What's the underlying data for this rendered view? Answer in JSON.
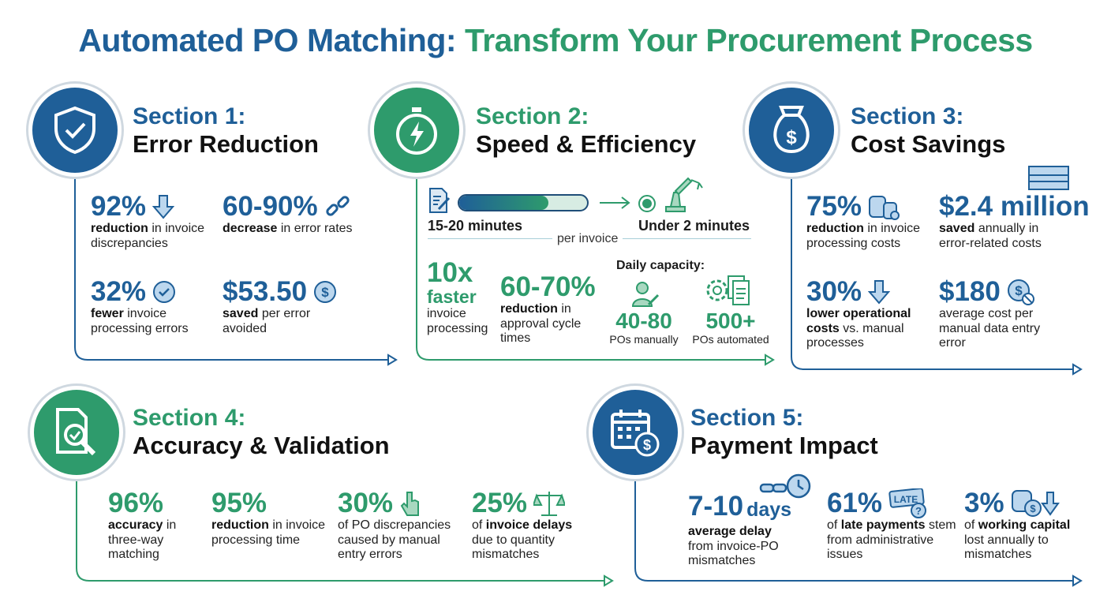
{
  "title": {
    "part1": "Automated PO Matching:",
    "part2": "Transform Your Procurement Process"
  },
  "colors": {
    "blue": "#1f5f98",
    "green": "#2e9b6c"
  },
  "sections": [
    {
      "number": "Section 1:",
      "name": "Error Reduction",
      "icon": "shield-check-icon",
      "stats": [
        {
          "value": "92%",
          "icon": "arrow-down-icon",
          "pre": "",
          "bold": "reduction",
          "post": " in invoice discrepancies"
        },
        {
          "value": "60-90%",
          "icon": "broken-link-icon",
          "pre": "",
          "bold": "decrease",
          "post": " in error rates"
        },
        {
          "value": "32%",
          "icon": "check-circle-icon",
          "pre": "",
          "bold": "fewer",
          "post": " invoice processing errors"
        },
        {
          "value": "$53.50",
          "icon": "dollar-coin-icon",
          "pre": "",
          "bold": "saved",
          "post": " per error avoided"
        }
      ]
    },
    {
      "number": "Section 2:",
      "name": "Speed & Efficiency",
      "icon": "stopwatch-lightning-icon",
      "before": "15-20 minutes",
      "after": "Under 2 minutes",
      "per": "per invoice",
      "progress_fill": 0.7,
      "stats": [
        {
          "value": "10x",
          "sub": "faster",
          "post": "invoice processing"
        },
        {
          "value": "60-70%",
          "bold": "reduction",
          "post": " in approval cycle times"
        }
      ],
      "capacity": {
        "label": "Daily capacity:",
        "manual_value": "40-80",
        "manual_label": "POs manually",
        "auto_value": "500+",
        "auto_label": "POs automated"
      }
    },
    {
      "number": "Section 3:",
      "name": "Cost Savings",
      "icon": "money-bag-icon",
      "stats": [
        {
          "value": "75%",
          "icon": "coins-icon",
          "pre": "",
          "bold": "reduction",
          "post": " in invoice processing costs"
        },
        {
          "value": "$2.4 million",
          "icon": "cash-stack-icon",
          "pre": "",
          "bold": "saved",
          "post": " annually in error-related costs"
        },
        {
          "value": "30%",
          "icon": "arrow-down-icon",
          "pre": "",
          "bold": "lower operational costs",
          "post": " vs. manual processes"
        },
        {
          "value": "$180",
          "icon": "dollar-block-icon",
          "pre": "",
          "bold": "",
          "post": "average cost per manual data entry error"
        }
      ]
    },
    {
      "number": "Section 4:",
      "name": "Accuracy & Validation",
      "icon": "document-search-icon",
      "stats": [
        {
          "value": "96%",
          "pre": "",
          "bold": "accuracy",
          "post": " in three-way matching"
        },
        {
          "value": "95%",
          "pre": "",
          "bold": "reduction",
          "post": " in invoice processing time"
        },
        {
          "value": "30%",
          "icon": "hand-pointer-icon",
          "pre": "of PO discrepancies caused by manual entry errors",
          "bold": "",
          "post": ""
        },
        {
          "value": "25%",
          "icon": "scales-icon",
          "pre": "of ",
          "bold": "invoice delays",
          "post": " due to quantity mismatches"
        }
      ]
    },
    {
      "number": "Section 5:",
      "name": "Payment Impact",
      "icon": "calendar-dollar-icon",
      "stats": [
        {
          "value": "7-10",
          "unit": "days",
          "icon": "broken-link-clock-icon",
          "pre": "",
          "bold": "average delay",
          "post": " from invoice-PO mismatches"
        },
        {
          "value": "61%",
          "icon": "late-ticket-icon",
          "icon_text": "LATE",
          "pre": "of ",
          "bold": "late payments",
          "post": " stem from administrative issues"
        },
        {
          "value": "3%",
          "icon": "coins-down-icon",
          "pre": "of ",
          "bold": "working capital",
          "post": " lost annually to mismatches"
        }
      ]
    }
  ]
}
